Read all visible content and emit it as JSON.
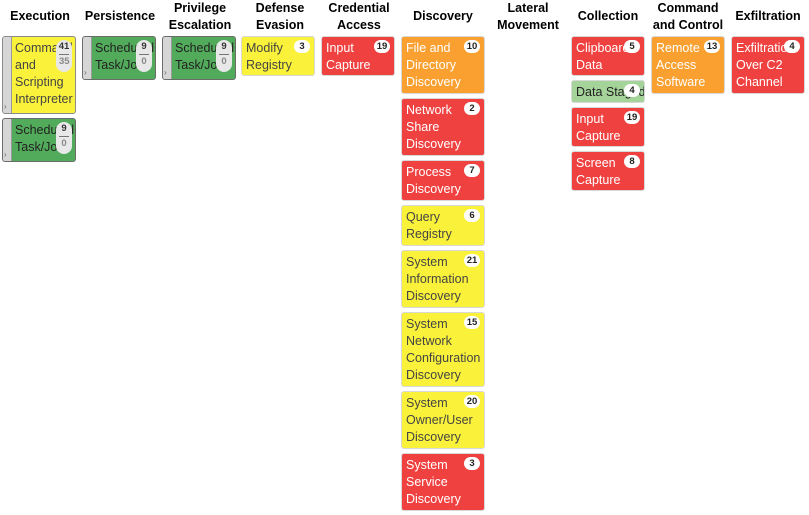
{
  "headers": [
    {
      "id": "execution",
      "label": "Execution"
    },
    {
      "id": "persistence",
      "label": "Persistence"
    },
    {
      "id": "privilege-escalation",
      "label": "Privilege\nEscalation"
    },
    {
      "id": "defense-evasion",
      "label": "Defense\nEvasion"
    },
    {
      "id": "credential-access",
      "label": "Credential\nAccess"
    },
    {
      "id": "discovery",
      "label": "Discovery"
    },
    {
      "id": "lateral-movement",
      "label": "Lateral\nMovement"
    },
    {
      "id": "collection",
      "label": "Collection"
    },
    {
      "id": "command-and-control",
      "label": "Command\nand Control"
    },
    {
      "id": "exfiltration",
      "label": "Exfiltration"
    }
  ],
  "columns": {
    "execution": [
      {
        "name": "Command and Scripting Interpreter",
        "color": "yellow",
        "count": "41",
        "subcount": "35",
        "has_sub": true
      },
      {
        "name": "Scheduled Task/Job",
        "color": "green",
        "count": "9",
        "subcount": "0",
        "has_sub": true
      }
    ],
    "persistence": [
      {
        "name": "Scheduled Task/Job",
        "color": "green",
        "count": "9",
        "subcount": "0",
        "has_sub": true
      }
    ],
    "privilege_escalation": [
      {
        "name": "Scheduled Task/Job",
        "color": "green",
        "count": "9",
        "subcount": "0",
        "has_sub": true
      }
    ],
    "defense_evasion": [
      {
        "name": "Modify Registry",
        "color": "yellow",
        "count": "3"
      }
    ],
    "credential_access": [
      {
        "name": "Input Capture",
        "color": "red",
        "count": "19"
      }
    ],
    "discovery": [
      {
        "name": "File and Directory Discovery",
        "color": "orange",
        "count": "10"
      },
      {
        "name": "Network Share Discovery",
        "color": "red",
        "count": "2"
      },
      {
        "name": "Process Discovery",
        "color": "red",
        "count": "7"
      },
      {
        "name": "Query Registry",
        "color": "yellow",
        "count": "6"
      },
      {
        "name": "System Information Discovery",
        "color": "yellow",
        "count": "21"
      },
      {
        "name": "System Network Configuration Discovery",
        "color": "yellow",
        "count": "15"
      },
      {
        "name": "System Owner/User Discovery",
        "color": "yellow",
        "count": "20"
      },
      {
        "name": "System Service Discovery",
        "color": "red",
        "count": "3"
      }
    ],
    "collection": [
      {
        "name": "Clipboard Data",
        "color": "red",
        "count": "5"
      },
      {
        "name": "Data Staged",
        "color": "lgreen",
        "count": "4"
      },
      {
        "name": "Input Capture",
        "color": "red",
        "count": "19"
      },
      {
        "name": "Screen Capture",
        "color": "red",
        "count": "8"
      }
    ],
    "command_and_control": [
      {
        "name": "Remote Access Software",
        "color": "orange",
        "count": "13"
      }
    ],
    "exfiltration": [
      {
        "name": "Exfiltration Over C2 Channel",
        "color": "red",
        "count": "4"
      }
    ]
  }
}
